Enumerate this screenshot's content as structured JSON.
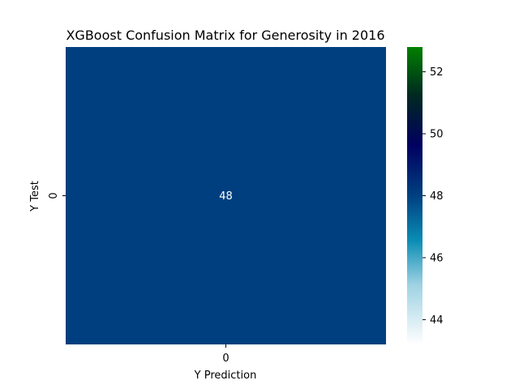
{
  "chart_data": {
    "type": "heatmap",
    "title": "XGBoost Confusion Matrix for Generosity in 2016",
    "xlabel": "Y Prediction",
    "ylabel": "Y Test",
    "x_categories": [
      "0"
    ],
    "y_categories": [
      "0"
    ],
    "matrix": [
      [
        48
      ]
    ],
    "annotations": [
      [
        "48"
      ]
    ],
    "colormap": "ocean_r",
    "cell_color": "#003F7F",
    "annotation_color": "#ffffff",
    "colorbar": {
      "vmin": 43.2,
      "vmax": 52.8,
      "ticks": [
        44,
        46,
        48,
        50,
        52
      ],
      "tick_labels": [
        "44",
        "46",
        "48",
        "50",
        "52"
      ],
      "position": "right"
    }
  }
}
